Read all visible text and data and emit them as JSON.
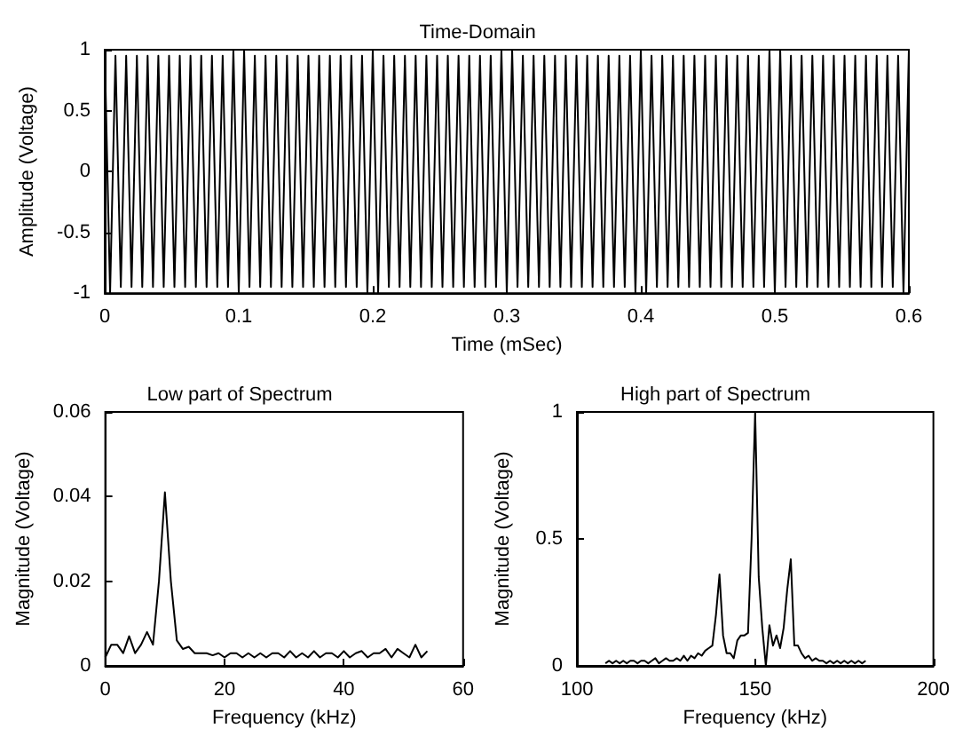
{
  "chart_data": [
    {
      "type": "line",
      "title": "Time-Domain",
      "xlabel": "Time (mSec)",
      "ylabel": "Amplitude (Voltage)",
      "xlim": [
        0,
        0.6
      ],
      "xticks": [
        0,
        0.1,
        0.2,
        0.3,
        0.4,
        0.5,
        0.6
      ],
      "ylim": [
        -1,
        1
      ],
      "yticks": [
        -1,
        -0.5,
        0,
        0.5,
        1
      ],
      "series": [
        {
          "color": "#000000",
          "x": [
            0,
            0.004,
            0.008,
            0.012,
            0.016,
            0.02,
            0.024,
            0.028,
            0.032,
            0.036,
            0.04,
            0.044,
            0.048,
            0.052,
            0.056,
            0.06,
            0.064,
            0.068,
            0.072,
            0.076,
            0.08,
            0.084,
            0.088,
            0.092,
            0.096,
            0.1,
            0.104,
            0.108,
            0.112,
            0.116,
            0.12,
            0.124,
            0.128,
            0.132,
            0.136,
            0.14,
            0.144,
            0.148,
            0.152,
            0.156,
            0.16,
            0.164,
            0.168,
            0.172,
            0.176,
            0.18,
            0.184,
            0.188,
            0.192,
            0.196,
            0.2,
            0.204,
            0.208,
            0.212,
            0.216,
            0.22,
            0.224,
            0.228,
            0.232,
            0.236,
            0.24,
            0.244,
            0.248,
            0.252,
            0.256,
            0.26,
            0.264,
            0.268,
            0.272,
            0.276,
            0.28,
            0.284,
            0.288,
            0.292,
            0.296,
            0.3,
            0.304,
            0.308,
            0.312,
            0.316,
            0.32,
            0.324,
            0.328,
            0.332,
            0.336,
            0.34,
            0.344,
            0.348,
            0.352,
            0.356,
            0.36,
            0.364,
            0.368,
            0.372,
            0.376,
            0.38,
            0.384,
            0.388,
            0.392,
            0.396,
            0.4,
            0.404,
            0.408,
            0.412,
            0.416,
            0.42,
            0.424,
            0.428,
            0.432,
            0.436,
            0.44,
            0.444,
            0.448,
            0.452,
            0.456,
            0.46,
            0.464,
            0.468,
            0.472,
            0.476,
            0.48,
            0.484,
            0.488,
            0.492,
            0.496,
            0.5,
            0.504,
            0.508,
            0.512,
            0.516,
            0.52,
            0.524,
            0.528,
            0.532,
            0.536,
            0.54,
            0.544,
            0.548,
            0.552,
            0.556,
            0.56,
            0.564,
            0.568,
            0.572,
            0.576,
            0.58,
            0.584,
            0.588,
            0.592,
            0.596,
            0.6
          ],
          "values": [
            1,
            -1,
            0.95,
            -0.95,
            0.95,
            -0.95,
            0.95,
            -0.95,
            0.95,
            -0.95,
            0.95,
            -0.95,
            0.95,
            -0.95,
            0.95,
            -0.95,
            0.95,
            -0.95,
            0.95,
            -0.95,
            0.95,
            -0.95,
            0.95,
            -0.95,
            1,
            -1,
            1,
            -0.95,
            0.95,
            -0.95,
            0.95,
            -0.95,
            0.95,
            -0.95,
            0.95,
            -0.95,
            0.95,
            -0.95,
            0.95,
            -0.95,
            0.95,
            -0.95,
            0.95,
            -0.95,
            0.95,
            -0.95,
            0.95,
            -0.95,
            0.95,
            -1,
            1,
            -1,
            0.95,
            -0.95,
            0.95,
            -0.95,
            0.95,
            -0.95,
            0.95,
            -0.95,
            0.95,
            -0.95,
            0.95,
            -0.95,
            0.95,
            -0.95,
            0.95,
            -0.95,
            0.95,
            -0.95,
            0.95,
            -0.95,
            0.95,
            -0.95,
            1,
            -1,
            1,
            -0.95,
            0.95,
            -0.95,
            0.95,
            -0.95,
            0.95,
            -0.95,
            0.95,
            -0.95,
            0.95,
            -0.95,
            0.95,
            -0.95,
            0.95,
            -0.95,
            0.95,
            -0.95,
            0.95,
            -0.95,
            0.95,
            -0.95,
            0.95,
            -1,
            1,
            -1,
            0.95,
            -0.95,
            0.95,
            -0.95,
            0.95,
            -0.95,
            0.95,
            -0.95,
            0.95,
            -0.95,
            0.95,
            -0.95,
            0.95,
            -0.95,
            0.95,
            -0.95,
            0.95,
            -0.95,
            0.95,
            -0.95,
            0.95,
            -0.95,
            1,
            -1,
            1,
            -0.95,
            0.95,
            -0.95,
            0.95,
            -0.95,
            0.95,
            -0.95,
            0.95,
            -0.95,
            0.95,
            -0.95,
            0.95,
            -0.95,
            0.95,
            -0.95,
            0.95,
            -0.95,
            0.95,
            -0.95,
            0.95,
            -0.95,
            0.95,
            -1,
            1
          ]
        }
      ]
    },
    {
      "type": "line",
      "title": "Low part of Spectrum",
      "xlabel": "Frequency (kHz)",
      "ylabel": "Magnitude (Voltage)",
      "xlim": [
        0,
        60
      ],
      "xticks": [
        0,
        20,
        40,
        60
      ],
      "ylim": [
        0,
        0.06
      ],
      "yticks": [
        0,
        0.02,
        0.04,
        0.06
      ],
      "series": [
        {
          "color": "#000000",
          "x": [
            0,
            1,
            2,
            3,
            4,
            5,
            6,
            7,
            8,
            9,
            10,
            11,
            12,
            13,
            14,
            15,
            16,
            17,
            18,
            19,
            20,
            21,
            22,
            23,
            24,
            25,
            26,
            27,
            28,
            29,
            30,
            31,
            32,
            33,
            34,
            35,
            36,
            37,
            38,
            39,
            40,
            41,
            42,
            43,
            44,
            45,
            46,
            47,
            48,
            49,
            50,
            51,
            52,
            53,
            54
          ],
          "values": [
            0.002,
            0.005,
            0.005,
            0.003,
            0.007,
            0.003,
            0.005,
            0.008,
            0.005,
            0.02,
            0.041,
            0.02,
            0.006,
            0.004,
            0.0045,
            0.003,
            0.003,
            0.003,
            0.0025,
            0.003,
            0.002,
            0.003,
            0.003,
            0.002,
            0.003,
            0.002,
            0.003,
            0.002,
            0.003,
            0.003,
            0.002,
            0.0035,
            0.002,
            0.003,
            0.002,
            0.0035,
            0.002,
            0.003,
            0.003,
            0.002,
            0.0035,
            0.002,
            0.003,
            0.0035,
            0.002,
            0.003,
            0.003,
            0.004,
            0.002,
            0.004,
            0.003,
            0.002,
            0.005,
            0.002,
            0.0035
          ]
        }
      ]
    },
    {
      "type": "line",
      "title": "High part of Spectrum",
      "xlabel": "Frequency (kHz)",
      "ylabel": "Magnitude (Voltage)",
      "xlim": [
        100,
        200
      ],
      "xticks": [
        100,
        150,
        200
      ],
      "ylim": [
        0,
        1
      ],
      "yticks": [
        0,
        0.5,
        1
      ],
      "series": [
        {
          "color": "#000000",
          "x": [
            108,
            109,
            110,
            111,
            112,
            113,
            114,
            115,
            116,
            117,
            118,
            119,
            120,
            121,
            122,
            123,
            124,
            125,
            126,
            127,
            128,
            129,
            130,
            131,
            132,
            133,
            134,
            135,
            136,
            137,
            138,
            139,
            140,
            141,
            142,
            143,
            144,
            145,
            146,
            147,
            148,
            149,
            150,
            151,
            152,
            153,
            154,
            155,
            156,
            157,
            158,
            159,
            160,
            161,
            162,
            163,
            164,
            165,
            166,
            167,
            168,
            169,
            170,
            171,
            172,
            173,
            174,
            175,
            176,
            177,
            178,
            179,
            180,
            181
          ],
          "values": [
            0.01,
            0.02,
            0.01,
            0.02,
            0.01,
            0.02,
            0.01,
            0.02,
            0.02,
            0.01,
            0.02,
            0.02,
            0.01,
            0.02,
            0.03,
            0.01,
            0.02,
            0.03,
            0.02,
            0.02,
            0.03,
            0.02,
            0.04,
            0.02,
            0.04,
            0.03,
            0.05,
            0.04,
            0.06,
            0.07,
            0.08,
            0.2,
            0.36,
            0.12,
            0.05,
            0.05,
            0.03,
            0.1,
            0.12,
            0.12,
            0.13,
            0.5,
            1,
            0.35,
            0.15,
            0,
            0.16,
            0.08,
            0.12,
            0.07,
            0.15,
            0.3,
            0.42,
            0.08,
            0.08,
            0.05,
            0.03,
            0.04,
            0.02,
            0.03,
            0.02,
            0.02,
            0.01,
            0.02,
            0.01,
            0.02,
            0.01,
            0.02,
            0.01,
            0.02,
            0.01,
            0.02,
            0.01,
            0.02
          ]
        }
      ]
    }
  ]
}
